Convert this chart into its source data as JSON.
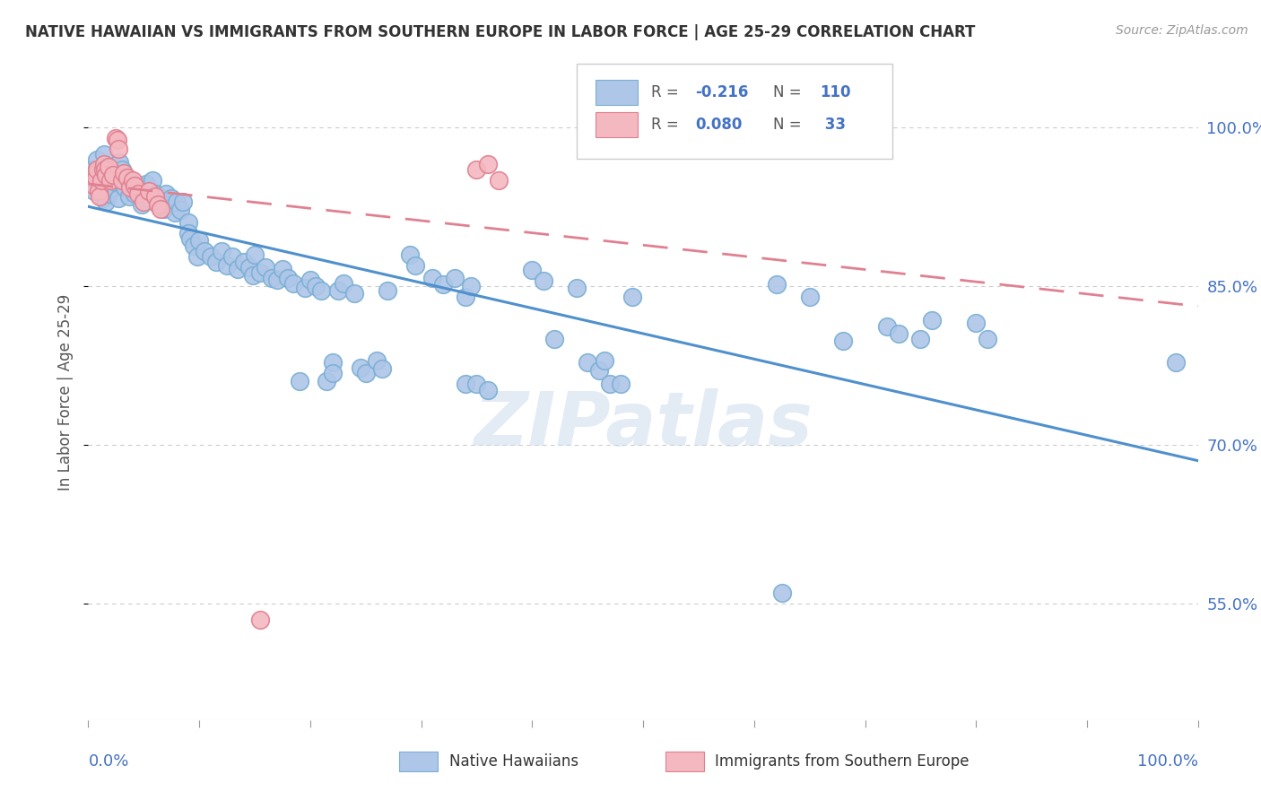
{
  "title": "NATIVE HAWAIIAN VS IMMIGRANTS FROM SOUTHERN EUROPE IN LABOR FORCE | AGE 25-29 CORRELATION CHART",
  "source": "Source: ZipAtlas.com",
  "ylabel": "In Labor Force | Age 25-29",
  "ytick_labels": [
    "55.0%",
    "70.0%",
    "85.0%",
    "100.0%"
  ],
  "ytick_values": [
    0.55,
    0.7,
    0.85,
    1.0
  ],
  "xlim": [
    0.0,
    1.0
  ],
  "ylim": [
    0.44,
    1.06
  ],
  "blue_color": "#aec6e8",
  "pink_color": "#f4b8c1",
  "blue_line_color": "#4f90cd",
  "pink_line_color": "#e08090",
  "blue_scatter_edge": "#7aafd4",
  "pink_scatter_edge": "#e08090",
  "legend_blue_label": "Native Hawaiians",
  "legend_pink_label": "Immigrants from Southern Europe",
  "watermark": "ZIPatlas",
  "blue_points": [
    [
      0.004,
      0.96
    ],
    [
      0.005,
      0.94
    ],
    [
      0.006,
      0.958
    ],
    [
      0.007,
      0.948
    ],
    [
      0.008,
      0.97
    ],
    [
      0.009,
      0.957
    ],
    [
      0.01,
      0.953
    ],
    [
      0.011,
      0.96
    ],
    [
      0.012,
      0.94
    ],
    [
      0.013,
      0.933
    ],
    [
      0.014,
      0.975
    ],
    [
      0.015,
      0.947
    ],
    [
      0.016,
      0.93
    ],
    [
      0.017,
      0.945
    ],
    [
      0.018,
      0.937
    ],
    [
      0.019,
      0.955
    ],
    [
      0.02,
      0.951
    ],
    [
      0.022,
      0.943
    ],
    [
      0.025,
      0.955
    ],
    [
      0.025,
      0.948
    ],
    [
      0.027,
      0.933
    ],
    [
      0.028,
      0.967
    ],
    [
      0.03,
      0.96
    ],
    [
      0.032,
      0.945
    ],
    [
      0.033,
      0.943
    ],
    [
      0.035,
      0.952
    ],
    [
      0.037,
      0.935
    ],
    [
      0.038,
      0.949
    ],
    [
      0.04,
      0.945
    ],
    [
      0.042,
      0.937
    ],
    [
      0.044,
      0.945
    ],
    [
      0.045,
      0.945
    ],
    [
      0.048,
      0.927
    ],
    [
      0.05,
      0.94
    ],
    [
      0.052,
      0.947
    ],
    [
      0.055,
      0.933
    ],
    [
      0.058,
      0.95
    ],
    [
      0.06,
      0.937
    ],
    [
      0.063,
      0.93
    ],
    [
      0.065,
      0.933
    ],
    [
      0.068,
      0.923
    ],
    [
      0.07,
      0.937
    ],
    [
      0.072,
      0.927
    ],
    [
      0.075,
      0.933
    ],
    [
      0.078,
      0.92
    ],
    [
      0.08,
      0.93
    ],
    [
      0.083,
      0.922
    ],
    [
      0.085,
      0.93
    ],
    [
      0.09,
      0.91
    ],
    [
      0.09,
      0.9
    ],
    [
      0.092,
      0.895
    ],
    [
      0.095,
      0.888
    ],
    [
      0.098,
      0.878
    ],
    [
      0.1,
      0.893
    ],
    [
      0.105,
      0.883
    ],
    [
      0.11,
      0.878
    ],
    [
      0.115,
      0.873
    ],
    [
      0.12,
      0.883
    ],
    [
      0.125,
      0.87
    ],
    [
      0.13,
      0.878
    ],
    [
      0.135,
      0.866
    ],
    [
      0.14,
      0.873
    ],
    [
      0.145,
      0.868
    ],
    [
      0.148,
      0.86
    ],
    [
      0.15,
      0.88
    ],
    [
      0.155,
      0.863
    ],
    [
      0.16,
      0.868
    ],
    [
      0.165,
      0.858
    ],
    [
      0.17,
      0.856
    ],
    [
      0.175,
      0.866
    ],
    [
      0.18,
      0.858
    ],
    [
      0.185,
      0.853
    ],
    [
      0.19,
      0.76
    ],
    [
      0.195,
      0.848
    ],
    [
      0.2,
      0.856
    ],
    [
      0.205,
      0.85
    ],
    [
      0.21,
      0.846
    ],
    [
      0.215,
      0.76
    ],
    [
      0.22,
      0.778
    ],
    [
      0.22,
      0.768
    ],
    [
      0.225,
      0.846
    ],
    [
      0.23,
      0.853
    ],
    [
      0.24,
      0.843
    ],
    [
      0.245,
      0.773
    ],
    [
      0.25,
      0.768
    ],
    [
      0.26,
      0.78
    ],
    [
      0.265,
      0.772
    ],
    [
      0.27,
      0.846
    ],
    [
      0.29,
      0.88
    ],
    [
      0.295,
      0.87
    ],
    [
      0.31,
      0.858
    ],
    [
      0.32,
      0.852
    ],
    [
      0.33,
      0.858
    ],
    [
      0.34,
      0.84
    ],
    [
      0.34,
      0.758
    ],
    [
      0.345,
      0.85
    ],
    [
      0.35,
      0.758
    ],
    [
      0.36,
      0.752
    ],
    [
      0.4,
      0.865
    ],
    [
      0.41,
      0.855
    ],
    [
      0.42,
      0.8
    ],
    [
      0.44,
      0.848
    ],
    [
      0.45,
      0.778
    ],
    [
      0.46,
      0.77
    ],
    [
      0.465,
      0.78
    ],
    [
      0.47,
      0.758
    ],
    [
      0.48,
      0.758
    ],
    [
      0.49,
      0.84
    ],
    [
      0.62,
      0.852
    ],
    [
      0.625,
      0.56
    ],
    [
      0.65,
      0.84
    ],
    [
      0.68,
      0.798
    ],
    [
      0.72,
      0.812
    ],
    [
      0.73,
      0.805
    ],
    [
      0.75,
      0.8
    ],
    [
      0.76,
      0.818
    ],
    [
      0.8,
      0.815
    ],
    [
      0.81,
      0.8
    ],
    [
      0.98,
      0.778
    ]
  ],
  "pink_points": [
    [
      0.005,
      0.945
    ],
    [
      0.006,
      0.955
    ],
    [
      0.007,
      0.953
    ],
    [
      0.008,
      0.96
    ],
    [
      0.009,
      0.94
    ],
    [
      0.01,
      0.935
    ],
    [
      0.012,
      0.95
    ],
    [
      0.013,
      0.96
    ],
    [
      0.014,
      0.965
    ],
    [
      0.015,
      0.96
    ],
    [
      0.016,
      0.955
    ],
    [
      0.018,
      0.963
    ],
    [
      0.02,
      0.95
    ],
    [
      0.022,
      0.955
    ],
    [
      0.025,
      0.99
    ],
    [
      0.026,
      0.988
    ],
    [
      0.027,
      0.98
    ],
    [
      0.03,
      0.95
    ],
    [
      0.032,
      0.957
    ],
    [
      0.035,
      0.953
    ],
    [
      0.038,
      0.943
    ],
    [
      0.04,
      0.95
    ],
    [
      0.042,
      0.945
    ],
    [
      0.045,
      0.937
    ],
    [
      0.05,
      0.93
    ],
    [
      0.055,
      0.94
    ],
    [
      0.06,
      0.935
    ],
    [
      0.063,
      0.927
    ],
    [
      0.065,
      0.923
    ],
    [
      0.155,
      0.535
    ],
    [
      0.35,
      0.96
    ],
    [
      0.36,
      0.965
    ],
    [
      0.37,
      0.95
    ]
  ]
}
